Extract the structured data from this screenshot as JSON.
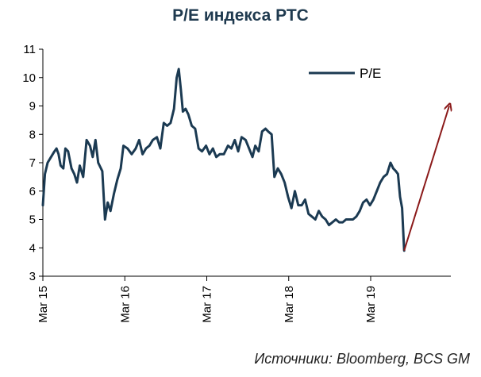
{
  "chart_data": {
    "type": "line",
    "title": "P/E индекса РТС",
    "xlabel": "",
    "ylabel": "",
    "ylim": [
      3,
      11
    ],
    "y_ticks": [
      3,
      4,
      5,
      6,
      7,
      8,
      9,
      10,
      11
    ],
    "x_ticks": [
      {
        "x": 0,
        "label": "Mar 15"
      },
      {
        "x": 12,
        "label": "Mar 16"
      },
      {
        "x": 24,
        "label": "Mar 17"
      },
      {
        "x": 36,
        "label": "Mar 18"
      },
      {
        "x": 48,
        "label": "Mar 19"
      }
    ],
    "xlim": [
      0,
      59.5
    ],
    "legend": {
      "placement": "top-right"
    },
    "series": [
      {
        "name": "P/E",
        "color": "#1b3a52",
        "points": [
          [
            0.0,
            5.5
          ],
          [
            0.3,
            6.6
          ],
          [
            0.7,
            7.0
          ],
          [
            1.2,
            7.2
          ],
          [
            1.7,
            7.4
          ],
          [
            2.0,
            7.5
          ],
          [
            2.3,
            7.3
          ],
          [
            2.6,
            6.9
          ],
          [
            3.0,
            6.8
          ],
          [
            3.3,
            7.5
          ],
          [
            3.7,
            7.4
          ],
          [
            4.2,
            6.8
          ],
          [
            4.6,
            6.6
          ],
          [
            5.0,
            6.3
          ],
          [
            5.4,
            6.9
          ],
          [
            5.9,
            6.5
          ],
          [
            6.4,
            7.8
          ],
          [
            6.9,
            7.6
          ],
          [
            7.3,
            7.2
          ],
          [
            7.7,
            7.8
          ],
          [
            8.1,
            7.0
          ],
          [
            8.7,
            6.7
          ],
          [
            9.1,
            5.0
          ],
          [
            9.5,
            5.6
          ],
          [
            9.9,
            5.3
          ],
          [
            10.4,
            5.9
          ],
          [
            10.9,
            6.4
          ],
          [
            11.4,
            6.8
          ],
          [
            11.8,
            7.6
          ],
          [
            12.4,
            7.5
          ],
          [
            13.0,
            7.3
          ],
          [
            13.6,
            7.5
          ],
          [
            14.1,
            7.8
          ],
          [
            14.6,
            7.3
          ],
          [
            15.1,
            7.5
          ],
          [
            15.6,
            7.6
          ],
          [
            16.1,
            7.8
          ],
          [
            16.7,
            7.9
          ],
          [
            17.2,
            7.5
          ],
          [
            17.7,
            8.4
          ],
          [
            18.2,
            8.3
          ],
          [
            18.7,
            8.4
          ],
          [
            19.2,
            8.9
          ],
          [
            19.6,
            10.0
          ],
          [
            19.9,
            10.3
          ],
          [
            20.2,
            9.6
          ],
          [
            20.5,
            8.8
          ],
          [
            20.9,
            8.9
          ],
          [
            21.3,
            8.7
          ],
          [
            21.8,
            8.3
          ],
          [
            22.3,
            8.2
          ],
          [
            22.8,
            7.5
          ],
          [
            23.3,
            7.4
          ],
          [
            23.9,
            7.6
          ],
          [
            24.4,
            7.3
          ],
          [
            24.9,
            7.5
          ],
          [
            25.4,
            7.2
          ],
          [
            25.9,
            7.3
          ],
          [
            26.5,
            7.3
          ],
          [
            27.1,
            7.6
          ],
          [
            27.6,
            7.5
          ],
          [
            28.1,
            7.8
          ],
          [
            28.6,
            7.4
          ],
          [
            29.1,
            7.9
          ],
          [
            29.7,
            7.8
          ],
          [
            30.2,
            7.5
          ],
          [
            30.7,
            7.2
          ],
          [
            31.1,
            7.6
          ],
          [
            31.6,
            7.4
          ],
          [
            32.1,
            8.1
          ],
          [
            32.6,
            8.2
          ],
          [
            33.0,
            8.1
          ],
          [
            33.5,
            8.0
          ],
          [
            33.9,
            6.5
          ],
          [
            34.4,
            6.8
          ],
          [
            34.9,
            6.6
          ],
          [
            35.4,
            6.3
          ],
          [
            35.9,
            5.8
          ],
          [
            36.4,
            5.4
          ],
          [
            36.9,
            6.0
          ],
          [
            37.4,
            5.5
          ],
          [
            37.9,
            5.5
          ],
          [
            38.4,
            5.7
          ],
          [
            38.9,
            5.2
          ],
          [
            39.4,
            5.1
          ],
          [
            39.9,
            5.0
          ],
          [
            40.4,
            5.3
          ],
          [
            40.9,
            5.1
          ],
          [
            41.4,
            5.0
          ],
          [
            41.9,
            4.8
          ],
          [
            42.4,
            4.9
          ],
          [
            42.9,
            5.0
          ],
          [
            43.4,
            4.9
          ],
          [
            43.9,
            4.9
          ],
          [
            44.4,
            5.0
          ],
          [
            44.9,
            5.0
          ],
          [
            45.4,
            5.0
          ],
          [
            45.9,
            5.1
          ],
          [
            46.4,
            5.3
          ],
          [
            46.9,
            5.6
          ],
          [
            47.4,
            5.7
          ],
          [
            47.9,
            5.5
          ],
          [
            48.4,
            5.7
          ],
          [
            48.9,
            6.0
          ],
          [
            49.4,
            6.3
          ],
          [
            49.9,
            6.5
          ],
          [
            50.4,
            6.6
          ],
          [
            50.9,
            7.0
          ],
          [
            51.3,
            6.8
          ],
          [
            51.7,
            6.7
          ],
          [
            52.0,
            6.6
          ],
          [
            52.3,
            5.8
          ],
          [
            52.6,
            5.4
          ],
          [
            52.9,
            3.9
          ]
        ]
      }
    ],
    "annotations": [
      {
        "type": "arrow",
        "color": "#8b1a1a",
        "from": [
          52.9,
          3.9
        ],
        "to": [
          59.5,
          9.0
        ]
      }
    ]
  },
  "source": "Источники: Bloomberg, BCS GM"
}
